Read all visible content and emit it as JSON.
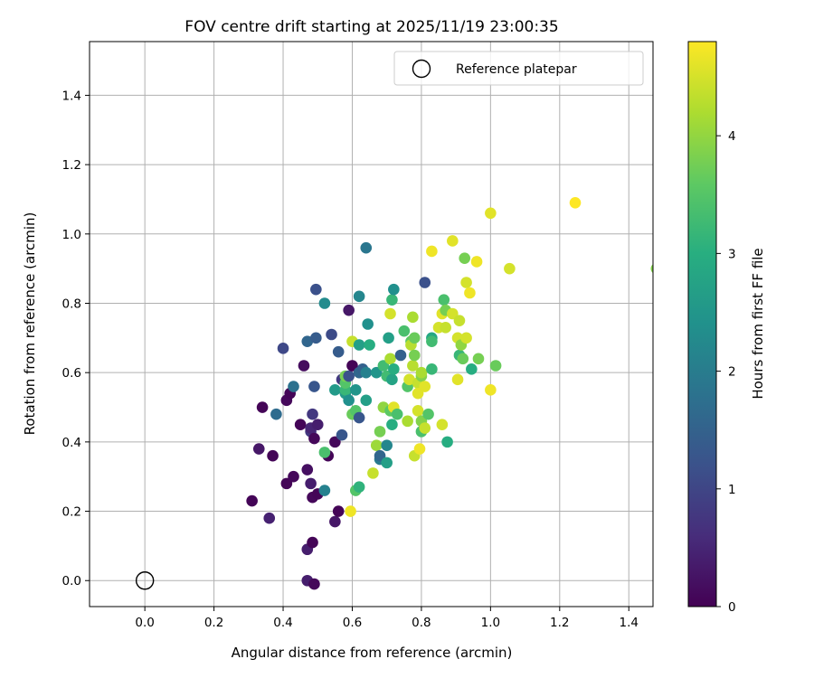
{
  "chart_data": {
    "type": "scatter",
    "title": "FOV centre drift starting at 2025/11/19 23:00:35",
    "xlabel": "Angular distance from reference (arcmin)",
    "ylabel": "Rotation from reference (arcmin)",
    "xlim": [
      -0.16,
      1.47
    ],
    "ylim": [
      -0.075,
      1.555
    ],
    "x_ticks": [
      "0.0",
      "0.2",
      "0.4",
      "0.6",
      "0.8",
      "1.0",
      "1.2",
      "1.4"
    ],
    "y_ticks": [
      "0.0",
      "0.2",
      "0.4",
      "0.6",
      "0.8",
      "1.0",
      "1.2",
      "1.4"
    ],
    "grid": true,
    "legend": {
      "position": "top-right",
      "entries": [
        "Reference platepar"
      ]
    },
    "colorbar": {
      "label": "Hours from first FF file",
      "min": 0,
      "max": 4.8,
      "ticks": [
        "0",
        "1",
        "2",
        "3",
        "4"
      ],
      "colormap": "viridis"
    },
    "reference_point": {
      "x": 0.0,
      "y": 0.0,
      "label": "Reference platepar"
    },
    "points": [
      {
        "x": 0.31,
        "y": 0.23,
        "h": 0.05
      },
      {
        "x": 0.34,
        "y": 0.5,
        "h": 0.05
      },
      {
        "x": 0.33,
        "y": 0.38,
        "h": 0.3
      },
      {
        "x": 0.36,
        "y": 0.18,
        "h": 0.45
      },
      {
        "x": 0.37,
        "y": 0.36,
        "h": 0.05
      },
      {
        "x": 0.38,
        "y": 0.48,
        "h": 1.7
      },
      {
        "x": 0.4,
        "y": 0.67,
        "h": 1.05
      },
      {
        "x": 0.41,
        "y": 0.52,
        "h": 0.1
      },
      {
        "x": 0.41,
        "y": 0.28,
        "h": 0.05
      },
      {
        "x": 0.42,
        "y": 0.54,
        "h": 0.05
      },
      {
        "x": 0.43,
        "y": 0.56,
        "h": 1.8
      },
      {
        "x": 0.43,
        "y": 0.3,
        "h": 0.1
      },
      {
        "x": 0.45,
        "y": 0.45,
        "h": 0.05
      },
      {
        "x": 0.46,
        "y": 0.62,
        "h": 0.15
      },
      {
        "x": 0.47,
        "y": 0.69,
        "h": 1.6
      },
      {
        "x": 0.47,
        "y": 0.32,
        "h": 0.2
      },
      {
        "x": 0.47,
        "y": 0.09,
        "h": 0.4
      },
      {
        "x": 0.47,
        "y": 0.0,
        "h": 0.4
      },
      {
        "x": 0.48,
        "y": 0.43,
        "h": 0.8
      },
      {
        "x": 0.48,
        "y": 0.44,
        "h": 0.5
      },
      {
        "x": 0.48,
        "y": 0.28,
        "h": 0.4
      },
      {
        "x": 0.485,
        "y": 0.48,
        "h": 0.8
      },
      {
        "x": 0.485,
        "y": 0.24,
        "h": 0.1
      },
      {
        "x": 0.485,
        "y": 0.11,
        "h": 0.05
      },
      {
        "x": 0.49,
        "y": 0.41,
        "h": 0.1
      },
      {
        "x": 0.49,
        "y": 0.56,
        "h": 1.3
      },
      {
        "x": 0.49,
        "y": -0.01,
        "h": 0.1
      },
      {
        "x": 0.495,
        "y": 0.84,
        "h": 1.2
      },
      {
        "x": 0.495,
        "y": 0.7,
        "h": 1.4
      },
      {
        "x": 0.5,
        "y": 0.45,
        "h": 0.4
      },
      {
        "x": 0.5,
        "y": 0.25,
        "h": 0.05
      },
      {
        "x": 0.52,
        "y": 0.26,
        "h": 2.1
      },
      {
        "x": 0.53,
        "y": 0.36,
        "h": 0.05
      },
      {
        "x": 0.52,
        "y": 0.37,
        "h": 3.4
      },
      {
        "x": 0.52,
        "y": 0.8,
        "h": 2.3
      },
      {
        "x": 0.54,
        "y": 0.71,
        "h": 1.1
      },
      {
        "x": 0.55,
        "y": 0.4,
        "h": 0.1
      },
      {
        "x": 0.55,
        "y": 0.55,
        "h": 2.6
      },
      {
        "x": 0.55,
        "y": 0.17,
        "h": 0.3
      },
      {
        "x": 0.56,
        "y": 0.66,
        "h": 1.4
      },
      {
        "x": 0.56,
        "y": 0.2,
        "h": 0.05
      },
      {
        "x": 0.57,
        "y": 0.42,
        "h": 1.3
      },
      {
        "x": 0.57,
        "y": 0.58,
        "h": 0.8
      },
      {
        "x": 0.58,
        "y": 0.54,
        "h": 2.6
      },
      {
        "x": 0.58,
        "y": 0.55,
        "h": 3.2
      },
      {
        "x": 0.58,
        "y": 0.57,
        "h": 3.5
      },
      {
        "x": 0.58,
        "y": 0.59,
        "h": 3.8
      },
      {
        "x": 0.59,
        "y": 0.78,
        "h": 0.3
      },
      {
        "x": 0.59,
        "y": 0.52,
        "h": 2.4
      },
      {
        "x": 0.59,
        "y": 0.59,
        "h": 1.2
      },
      {
        "x": 0.595,
        "y": 0.2,
        "h": 4.7
      },
      {
        "x": 0.6,
        "y": 0.48,
        "h": 3.7
      },
      {
        "x": 0.6,
        "y": 0.62,
        "h": 0.05
      },
      {
        "x": 0.6,
        "y": 0.69,
        "h": 4.4
      },
      {
        "x": 0.61,
        "y": 0.49,
        "h": 3.5
      },
      {
        "x": 0.61,
        "y": 0.55,
        "h": 2.5
      },
      {
        "x": 0.61,
        "y": 0.26,
        "h": 3.5
      },
      {
        "x": 0.62,
        "y": 0.27,
        "h": 3.1
      },
      {
        "x": 0.62,
        "y": 0.82,
        "h": 2.2
      },
      {
        "x": 0.62,
        "y": 0.6,
        "h": 1.6
      },
      {
        "x": 0.62,
        "y": 0.47,
        "h": 1.3
      },
      {
        "x": 0.62,
        "y": 0.68,
        "h": 2.7
      },
      {
        "x": 0.63,
        "y": 0.61,
        "h": 1.5
      },
      {
        "x": 0.64,
        "y": 0.96,
        "h": 1.9
      },
      {
        "x": 0.64,
        "y": 0.6,
        "h": 2.1
      },
      {
        "x": 0.64,
        "y": 0.52,
        "h": 2.7
      },
      {
        "x": 0.645,
        "y": 0.74,
        "h": 2.4
      },
      {
        "x": 0.65,
        "y": 0.68,
        "h": 3.0
      },
      {
        "x": 0.66,
        "y": 0.31,
        "h": 4.4
      },
      {
        "x": 0.67,
        "y": 0.39,
        "h": 4.1
      },
      {
        "x": 0.67,
        "y": 0.6,
        "h": 2.5
      },
      {
        "x": 0.68,
        "y": 0.35,
        "h": 2.0
      },
      {
        "x": 0.68,
        "y": 0.36,
        "h": 1.6
      },
      {
        "x": 0.68,
        "y": 0.43,
        "h": 3.8
      },
      {
        "x": 0.69,
        "y": 0.62,
        "h": 3.3
      },
      {
        "x": 0.69,
        "y": 0.5,
        "h": 4.0
      },
      {
        "x": 0.7,
        "y": 0.39,
        "h": 2.2
      },
      {
        "x": 0.7,
        "y": 0.34,
        "h": 2.7
      },
      {
        "x": 0.7,
        "y": 0.59,
        "h": 3.3
      },
      {
        "x": 0.705,
        "y": 0.7,
        "h": 2.7
      },
      {
        "x": 0.71,
        "y": 0.77,
        "h": 4.5
      },
      {
        "x": 0.71,
        "y": 0.49,
        "h": 3.6
      },
      {
        "x": 0.71,
        "y": 0.64,
        "h": 4.2
      },
      {
        "x": 0.715,
        "y": 0.58,
        "h": 2.8
      },
      {
        "x": 0.715,
        "y": 0.81,
        "h": 3.2
      },
      {
        "x": 0.715,
        "y": 0.45,
        "h": 3.0
      },
      {
        "x": 0.72,
        "y": 0.84,
        "h": 2.4
      },
      {
        "x": 0.72,
        "y": 0.61,
        "h": 3.0
      },
      {
        "x": 0.72,
        "y": 0.5,
        "h": 4.6
      },
      {
        "x": 0.73,
        "y": 0.48,
        "h": 3.4
      },
      {
        "x": 0.74,
        "y": 0.65,
        "h": 1.5
      },
      {
        "x": 0.75,
        "y": 0.72,
        "h": 3.4
      },
      {
        "x": 0.76,
        "y": 0.56,
        "h": 3.5
      },
      {
        "x": 0.76,
        "y": 0.46,
        "h": 4.2
      },
      {
        "x": 0.765,
        "y": 0.58,
        "h": 4.5
      },
      {
        "x": 0.77,
        "y": 0.69,
        "h": 3.6
      },
      {
        "x": 0.77,
        "y": 0.68,
        "h": 4.3
      },
      {
        "x": 0.775,
        "y": 0.62,
        "h": 4.3
      },
      {
        "x": 0.775,
        "y": 0.76,
        "h": 4.2
      },
      {
        "x": 0.78,
        "y": 0.7,
        "h": 3.7
      },
      {
        "x": 0.78,
        "y": 0.36,
        "h": 4.4
      },
      {
        "x": 0.78,
        "y": 0.65,
        "h": 3.8
      },
      {
        "x": 0.79,
        "y": 0.57,
        "h": 4.4
      },
      {
        "x": 0.79,
        "y": 0.54,
        "h": 4.6
      },
      {
        "x": 0.79,
        "y": 0.49,
        "h": 4.5
      },
      {
        "x": 0.795,
        "y": 0.38,
        "h": 4.7
      },
      {
        "x": 0.8,
        "y": 0.59,
        "h": 3.9
      },
      {
        "x": 0.8,
        "y": 0.6,
        "h": 4.2
      },
      {
        "x": 0.8,
        "y": 0.46,
        "h": 3.9
      },
      {
        "x": 0.8,
        "y": 0.43,
        "h": 3.4
      },
      {
        "x": 0.81,
        "y": 0.86,
        "h": 1.2
      },
      {
        "x": 0.81,
        "y": 0.44,
        "h": 4.4
      },
      {
        "x": 0.81,
        "y": 0.56,
        "h": 4.6
      },
      {
        "x": 0.82,
        "y": 0.48,
        "h": 3.5
      },
      {
        "x": 0.83,
        "y": 0.7,
        "h": 2.9
      },
      {
        "x": 0.83,
        "y": 0.69,
        "h": 3.3
      },
      {
        "x": 0.83,
        "y": 0.61,
        "h": 3.2
      },
      {
        "x": 0.83,
        "y": 0.95,
        "h": 4.7
      },
      {
        "x": 0.85,
        "y": 0.73,
        "h": 4.5
      },
      {
        "x": 0.86,
        "y": 0.77,
        "h": 4.6
      },
      {
        "x": 0.86,
        "y": 0.45,
        "h": 4.5
      },
      {
        "x": 0.865,
        "y": 0.81,
        "h": 3.4
      },
      {
        "x": 0.87,
        "y": 0.78,
        "h": 3.8
      },
      {
        "x": 0.87,
        "y": 0.73,
        "h": 4.4
      },
      {
        "x": 0.875,
        "y": 0.4,
        "h": 3.0
      },
      {
        "x": 0.89,
        "y": 0.77,
        "h": 4.5
      },
      {
        "x": 0.89,
        "y": 0.98,
        "h": 4.6
      },
      {
        "x": 0.905,
        "y": 0.7,
        "h": 4.5
      },
      {
        "x": 0.905,
        "y": 0.58,
        "h": 4.6
      },
      {
        "x": 0.91,
        "y": 0.65,
        "h": 3.2
      },
      {
        "x": 0.91,
        "y": 0.75,
        "h": 4.4
      },
      {
        "x": 0.915,
        "y": 0.68,
        "h": 4.0
      },
      {
        "x": 0.92,
        "y": 0.64,
        "h": 3.7
      },
      {
        "x": 0.925,
        "y": 0.93,
        "h": 3.8
      },
      {
        "x": 0.93,
        "y": 0.86,
        "h": 4.5
      },
      {
        "x": 0.93,
        "y": 0.7,
        "h": 4.5
      },
      {
        "x": 0.94,
        "y": 0.83,
        "h": 4.7
      },
      {
        "x": 0.945,
        "y": 0.61,
        "h": 3.0
      },
      {
        "x": 0.96,
        "y": 0.92,
        "h": 4.7
      },
      {
        "x": 0.965,
        "y": 0.64,
        "h": 3.8
      },
      {
        "x": 1.0,
        "y": 1.06,
        "h": 4.6
      },
      {
        "x": 1.0,
        "y": 0.55,
        "h": 4.7
      },
      {
        "x": 1.015,
        "y": 0.62,
        "h": 3.7
      },
      {
        "x": 1.055,
        "y": 0.9,
        "h": 4.5
      },
      {
        "x": 1.245,
        "y": 1.09,
        "h": 4.8
      },
      {
        "x": 1.48,
        "y": 0.9,
        "h": 3.9
      }
    ]
  }
}
